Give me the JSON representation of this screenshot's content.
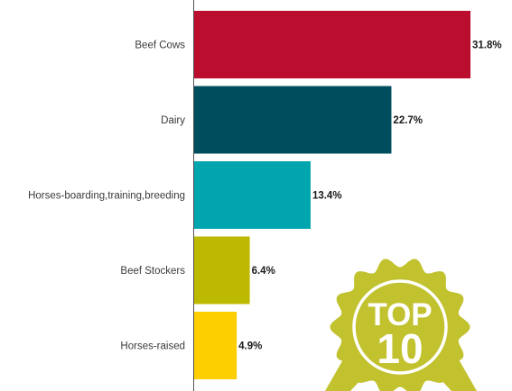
{
  "chart_data": {
    "type": "bar",
    "orientation": "horizontal",
    "categories": [
      "Beef Cows",
      "Dairy",
      "Horses-boarding,training,breeding",
      "Beef Stockers",
      "Horses-raised"
    ],
    "values": [
      31.8,
      22.7,
      13.4,
      6.4,
      4.9
    ],
    "value_labels": [
      "31.8%",
      "22.7%",
      "13.4%",
      "6.4%",
      "4.9%"
    ],
    "colors": [
      "#bb0e2f",
      "#004d5e",
      "#00a5ad",
      "#bdb800",
      "#fecf00"
    ],
    "xlim": [
      0,
      31.8
    ],
    "unit": "%",
    "grid": false,
    "legend": "none"
  },
  "badge": {
    "line1": "TOP",
    "line2": "10",
    "icon": "award-seal-icon",
    "color": "#c2c12e"
  }
}
